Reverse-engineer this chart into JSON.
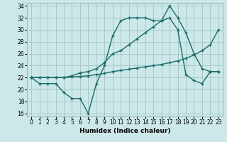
{
  "xlabel": "Humidex (Indice chaleur)",
  "xlim": [
    -0.5,
    23.5
  ],
  "ylim": [
    15.5,
    34.5
  ],
  "xticks": [
    0,
    1,
    2,
    3,
    4,
    5,
    6,
    7,
    8,
    9,
    10,
    11,
    12,
    13,
    14,
    15,
    16,
    17,
    18,
    19,
    20,
    21,
    22,
    23
  ],
  "yticks": [
    16,
    18,
    20,
    22,
    24,
    26,
    28,
    30,
    32,
    34
  ],
  "bg_color": "#cce8e8",
  "grid_color": "#9dbdbd",
  "line_color": "#1a6b6b",
  "line1_y": [
    22,
    21,
    21,
    21,
    19.5,
    18.5,
    18.5,
    16,
    21,
    24,
    29,
    31.5,
    32,
    32,
    32,
    31.5,
    31.5,
    34,
    32,
    29.5,
    26,
    23.5,
    23,
    23
  ],
  "line2_y": [
    22,
    22,
    22,
    22,
    22,
    22.3,
    22.8,
    23,
    23.5,
    24.5,
    26,
    26.5,
    27.5,
    28.5,
    29.5,
    30.5,
    31.5,
    32,
    30,
    22.5,
    21.5,
    21,
    23,
    23
  ],
  "line3_y": [
    22,
    22,
    22,
    22,
    22,
    22.1,
    22.2,
    22.3,
    22.5,
    22.7,
    23.0,
    23.2,
    23.4,
    23.6,
    23.8,
    24.0,
    24.2,
    24.5,
    24.8,
    25.2,
    25.8,
    26.5,
    27.5,
    30
  ],
  "markersize": 2.5,
  "linewidth": 1.0,
  "tick_fontsize": 5.5,
  "label_fontsize": 6.5
}
